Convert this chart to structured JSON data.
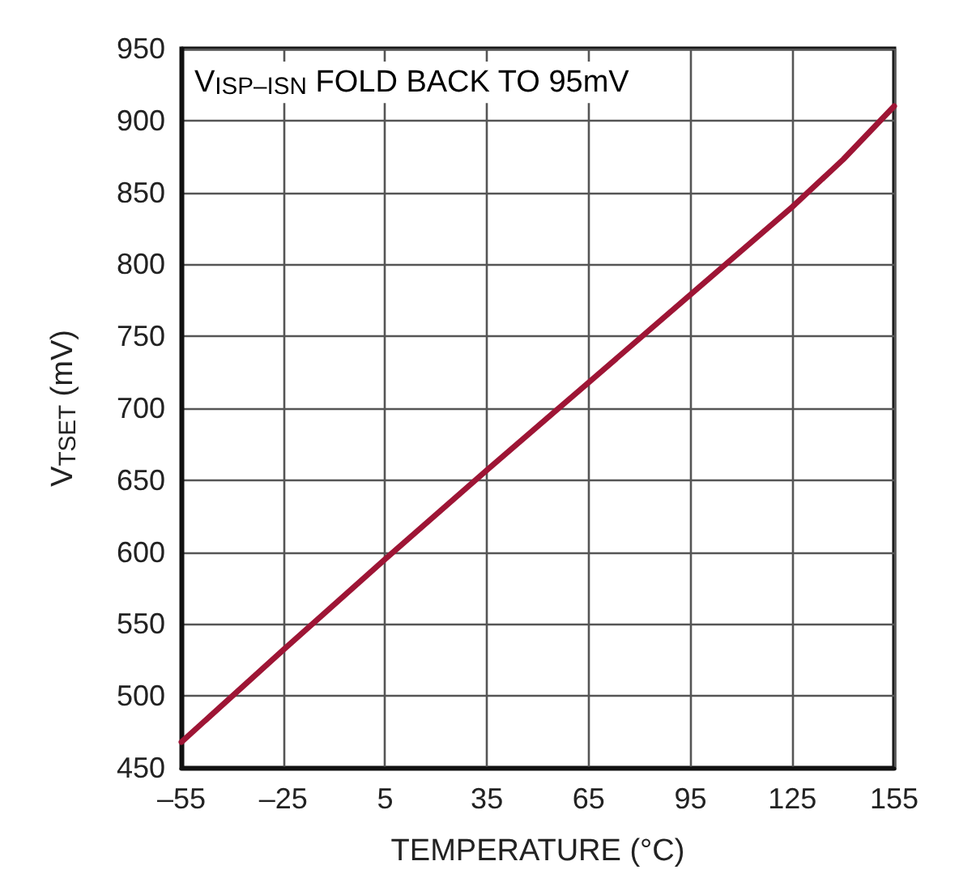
{
  "chart_data": {
    "type": "line",
    "xlabel": "TEMPERATURE (°C)",
    "ylabel": "V$_{TSET}$ (mV)",
    "annotations": [
      "V$_{ISP–ISN}$ FOLD BACK TO 95mV"
    ],
    "x": [
      -55,
      -25,
      5,
      35,
      65,
      95,
      125,
      140,
      155
    ],
    "series": [
      {
        "color": "#9e1535",
        "values": [
          468,
          532,
          595,
          657,
          718,
          779,
          840,
          873,
          910
        ]
      }
    ],
    "xlim": [
      -55,
      155
    ],
    "xticks": [
      {
        "value": -55,
        "label": "–55"
      },
      {
        "value": -25,
        "label": "–25"
      },
      5,
      35,
      65,
      95,
      125,
      155
    ],
    "ylim": [
      450,
      950
    ],
    "yticks": [
      450,
      500,
      550,
      600,
      650,
      700,
      750,
      800,
      850,
      900,
      950
    ],
    "grid": true,
    "marker": "none",
    "line_style": "solid"
  }
}
